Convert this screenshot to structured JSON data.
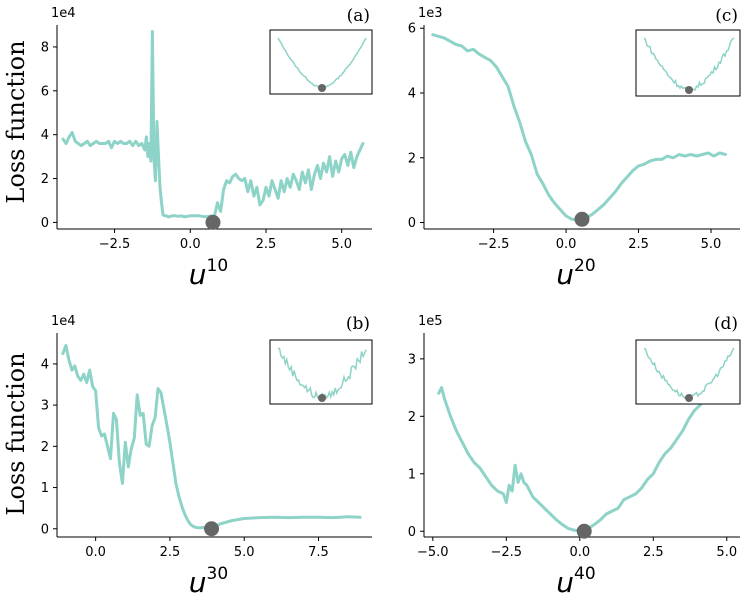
{
  "colors": {
    "line": "#8dd3c7",
    "marker": "#666666",
    "axis": "#000000"
  },
  "ylabel": "Loss function",
  "chart_data": [
    {
      "id": "a",
      "type": "line",
      "panel_label": "(a)",
      "sci_label": "1e4",
      "scale": 10000,
      "xlabel_base": "u",
      "xlabel_sup": "10",
      "xlim": [
        -4.4,
        6.0
      ],
      "ylim": [
        -0.3,
        9.0
      ],
      "xticks": [
        -2.5,
        0.0,
        2.5,
        5.0
      ],
      "xtick_labels": [
        "−2.5",
        "0.0",
        "2.5",
        "5.0"
      ],
      "yticks": [
        0,
        2,
        4,
        6,
        8
      ],
      "ytick_labels": [
        "0",
        "2",
        "4",
        "6",
        "8"
      ],
      "minimum": [
        0.75,
        0.0
      ],
      "x": [
        -4.2,
        -4.1,
        -4.0,
        -3.9,
        -3.8,
        -3.7,
        -3.6,
        -3.5,
        -3.4,
        -3.3,
        -3.2,
        -3.1,
        -3.0,
        -2.9,
        -2.8,
        -2.7,
        -2.6,
        -2.5,
        -2.4,
        -2.3,
        -2.2,
        -2.1,
        -2.0,
        -1.9,
        -1.8,
        -1.7,
        -1.6,
        -1.5,
        -1.45,
        -1.4,
        -1.35,
        -1.3,
        -1.25,
        -1.2,
        -1.15,
        -1.1,
        -1.05,
        -1.0,
        -0.95,
        -0.9,
        -0.85,
        -0.8,
        -0.7,
        -0.6,
        -0.5,
        -0.4,
        -0.3,
        -0.2,
        0.0,
        0.3,
        0.5,
        0.7,
        0.75,
        0.8,
        0.9,
        1.0,
        1.1,
        1.2,
        1.3,
        1.4,
        1.5,
        1.6,
        1.7,
        1.8,
        1.9,
        2.0,
        2.1,
        2.2,
        2.3,
        2.4,
        2.5,
        2.6,
        2.7,
        2.8,
        2.9,
        3.0,
        3.1,
        3.2,
        3.3,
        3.4,
        3.5,
        3.6,
        3.7,
        3.8,
        3.9,
        4.0,
        4.1,
        4.2,
        4.3,
        4.4,
        4.5,
        4.6,
        4.7,
        4.8,
        4.9,
        5.0,
        5.1,
        5.2,
        5.3,
        5.4,
        5.5,
        5.6,
        5.7
      ],
      "y": [
        3.8,
        3.6,
        3.9,
        4.1,
        3.7,
        3.6,
        3.5,
        3.6,
        3.7,
        3.5,
        3.6,
        3.7,
        3.6,
        3.6,
        3.6,
        3.7,
        3.4,
        3.7,
        3.6,
        3.7,
        3.6,
        3.6,
        3.7,
        3.5,
        3.7,
        3.5,
        3.6,
        3.3,
        3.9,
        3.0,
        3.6,
        2.8,
        8.7,
        3.0,
        1.9,
        4.6,
        3.0,
        1.6,
        0.9,
        0.35,
        0.3,
        0.3,
        0.25,
        0.3,
        0.3,
        0.28,
        0.3,
        0.25,
        0.3,
        0.3,
        0.25,
        0.3,
        0.0,
        0.3,
        0.9,
        0.5,
        1.5,
        1.9,
        1.8,
        2.1,
        2.2,
        2.0,
        1.9,
        2.0,
        1.4,
        1.9,
        1.2,
        1.6,
        0.8,
        1.0,
        1.6,
        1.2,
        1.9,
        1.5,
        1.1,
        1.9,
        1.4,
        2.0,
        1.6,
        2.2,
        1.9,
        1.5,
        2.3,
        1.8,
        2.4,
        1.5,
        2.2,
        2.6,
        2.0,
        2.7,
        2.3,
        3.0,
        2.1,
        2.8,
        2.3,
        2.9,
        3.1,
        2.6,
        3.2,
        2.5,
        3.0,
        3.3,
        3.6
      ]
    },
    {
      "id": "c",
      "type": "line",
      "panel_label": "(c)",
      "sci_label": "1e3",
      "scale": 1000,
      "xlabel_base": "u",
      "xlabel_sup": "20",
      "xlim": [
        -4.9,
        6.0
      ],
      "ylim": [
        -0.2,
        6.1
      ],
      "xticks": [
        -2.5,
        0.0,
        2.5,
        5.0
      ],
      "xtick_labels": [
        "−2.5",
        "0.0",
        "2.5",
        "5.0"
      ],
      "yticks": [
        0,
        2,
        4,
        6
      ],
      "ytick_labels": [
        "0",
        "2",
        "4",
        "6"
      ],
      "minimum": [
        0.55,
        0.1
      ],
      "x": [
        -4.6,
        -4.4,
        -4.2,
        -4.0,
        -3.8,
        -3.6,
        -3.4,
        -3.2,
        -3.0,
        -2.8,
        -2.6,
        -2.4,
        -2.2,
        -2.0,
        -1.8,
        -1.6,
        -1.4,
        -1.2,
        -1.0,
        -0.8,
        -0.6,
        -0.4,
        -0.2,
        0.0,
        0.2,
        0.4,
        0.55,
        0.7,
        0.9,
        1.1,
        1.3,
        1.5,
        1.7,
        1.9,
        2.1,
        2.3,
        2.5,
        2.7,
        2.9,
        3.1,
        3.3,
        3.5,
        3.7,
        3.9,
        4.1,
        4.3,
        4.5,
        4.7,
        4.9,
        5.1,
        5.3,
        5.5
      ],
      "y": [
        5.8,
        5.75,
        5.7,
        5.6,
        5.5,
        5.45,
        5.3,
        5.35,
        5.2,
        5.1,
        5.0,
        4.8,
        4.5,
        4.2,
        3.6,
        3.1,
        2.5,
        2.1,
        1.5,
        1.2,
        0.85,
        0.6,
        0.4,
        0.2,
        0.1,
        0.08,
        0.1,
        0.15,
        0.25,
        0.4,
        0.55,
        0.75,
        0.95,
        1.2,
        1.4,
        1.6,
        1.75,
        1.8,
        1.9,
        1.95,
        1.95,
        2.05,
        2.0,
        2.1,
        2.05,
        2.1,
        2.05,
        2.1,
        2.15,
        2.05,
        2.15,
        2.1
      ]
    },
    {
      "id": "b",
      "type": "line",
      "panel_label": "(b)",
      "sci_label": "1e4",
      "scale": 10000,
      "xlabel_base": "u",
      "xlabel_sup": "30",
      "xlim": [
        -1.3,
        9.3
      ],
      "ylim": [
        -0.2,
        4.75
      ],
      "xticks": [
        0.0,
        2.5,
        5.0,
        7.5
      ],
      "xtick_labels": [
        "0.0",
        "2.5",
        "5.0",
        "7.5"
      ],
      "yticks": [
        0,
        1,
        2,
        3,
        4
      ],
      "ytick_labels": [
        "0",
        "1",
        "2",
        "3",
        "4"
      ],
      "minimum": [
        3.9,
        0.0
      ],
      "x": [
        -1.1,
        -1.0,
        -0.9,
        -0.8,
        -0.7,
        -0.6,
        -0.5,
        -0.4,
        -0.3,
        -0.2,
        -0.1,
        0.0,
        0.1,
        0.2,
        0.3,
        0.4,
        0.5,
        0.6,
        0.7,
        0.8,
        0.9,
        1.0,
        1.1,
        1.2,
        1.3,
        1.4,
        1.5,
        1.6,
        1.7,
        1.8,
        1.9,
        2.0,
        2.1,
        2.2,
        2.3,
        2.4,
        2.5,
        2.6,
        2.7,
        2.8,
        2.9,
        3.0,
        3.1,
        3.2,
        3.3,
        3.4,
        3.5,
        3.6,
        3.7,
        3.8,
        3.9,
        4.2,
        4.6,
        5.0,
        5.5,
        6.0,
        6.5,
        7.0,
        7.5,
        8.0,
        8.5,
        8.9
      ],
      "y": [
        4.25,
        4.45,
        4.1,
        3.85,
        3.95,
        3.7,
        3.6,
        3.75,
        3.55,
        3.85,
        3.45,
        3.35,
        2.45,
        2.25,
        2.3,
        2.0,
        1.7,
        2.8,
        2.65,
        1.6,
        1.1,
        2.1,
        1.5,
        1.95,
        2.2,
        3.25,
        2.75,
        2.8,
        2.05,
        2.0,
        2.5,
        2.7,
        3.4,
        3.3,
        2.9,
        2.5,
        2.1,
        1.6,
        1.1,
        0.8,
        0.55,
        0.35,
        0.2,
        0.1,
        0.05,
        0.03,
        0.02,
        0.03,
        0.02,
        0.03,
        0.0,
        0.12,
        0.2,
        0.25,
        0.27,
        0.28,
        0.27,
        0.28,
        0.28,
        0.27,
        0.29,
        0.28
      ]
    },
    {
      "id": "d",
      "type": "line",
      "panel_label": "(d)",
      "sci_label": "1e5",
      "scale": 100000,
      "xlabel_base": "u",
      "xlabel_sup": "40",
      "xlim": [
        -5.3,
        5.45
      ],
      "ylim": [
        -0.1,
        3.45
      ],
      "xticks": [
        -5.0,
        -2.5,
        0.0,
        2.5,
        5.0
      ],
      "xtick_labels": [
        "−5.0",
        "−2.5",
        "0.0",
        "2.5",
        "5.0"
      ],
      "yticks": [
        0,
        1,
        2,
        3
      ],
      "ytick_labels": [
        "0",
        "1",
        "2",
        "3"
      ],
      "minimum": [
        0.15,
        0.0
      ],
      "x": [
        -4.8,
        -4.7,
        -4.6,
        -4.4,
        -4.2,
        -4.0,
        -3.8,
        -3.6,
        -3.4,
        -3.2,
        -3.0,
        -2.8,
        -2.6,
        -2.5,
        -2.4,
        -2.3,
        -2.2,
        -2.1,
        -2.0,
        -1.9,
        -1.8,
        -1.6,
        -1.4,
        -1.2,
        -1.0,
        -0.8,
        -0.6,
        -0.4,
        -0.2,
        0.0,
        0.15,
        0.3,
        0.5,
        0.7,
        0.9,
        1.1,
        1.3,
        1.5,
        1.7,
        1.9,
        2.1,
        2.3,
        2.5,
        2.7,
        2.9,
        3.1,
        3.3,
        3.5,
        3.7,
        3.9,
        4.1,
        4.3
      ],
      "y": [
        2.4,
        2.5,
        2.3,
        2.0,
        1.75,
        1.55,
        1.35,
        1.2,
        1.1,
        0.95,
        0.8,
        0.7,
        0.65,
        0.5,
        0.8,
        0.7,
        1.15,
        0.85,
        1.0,
        0.85,
        0.8,
        0.6,
        0.5,
        0.4,
        0.3,
        0.2,
        0.12,
        0.05,
        0.02,
        0.01,
        0.0,
        0.05,
        0.12,
        0.2,
        0.3,
        0.35,
        0.4,
        0.55,
        0.6,
        0.65,
        0.75,
        0.9,
        1.0,
        1.2,
        1.35,
        1.45,
        1.6,
        1.75,
        1.95,
        2.1,
        2.2,
        2.3
      ]
    }
  ]
}
